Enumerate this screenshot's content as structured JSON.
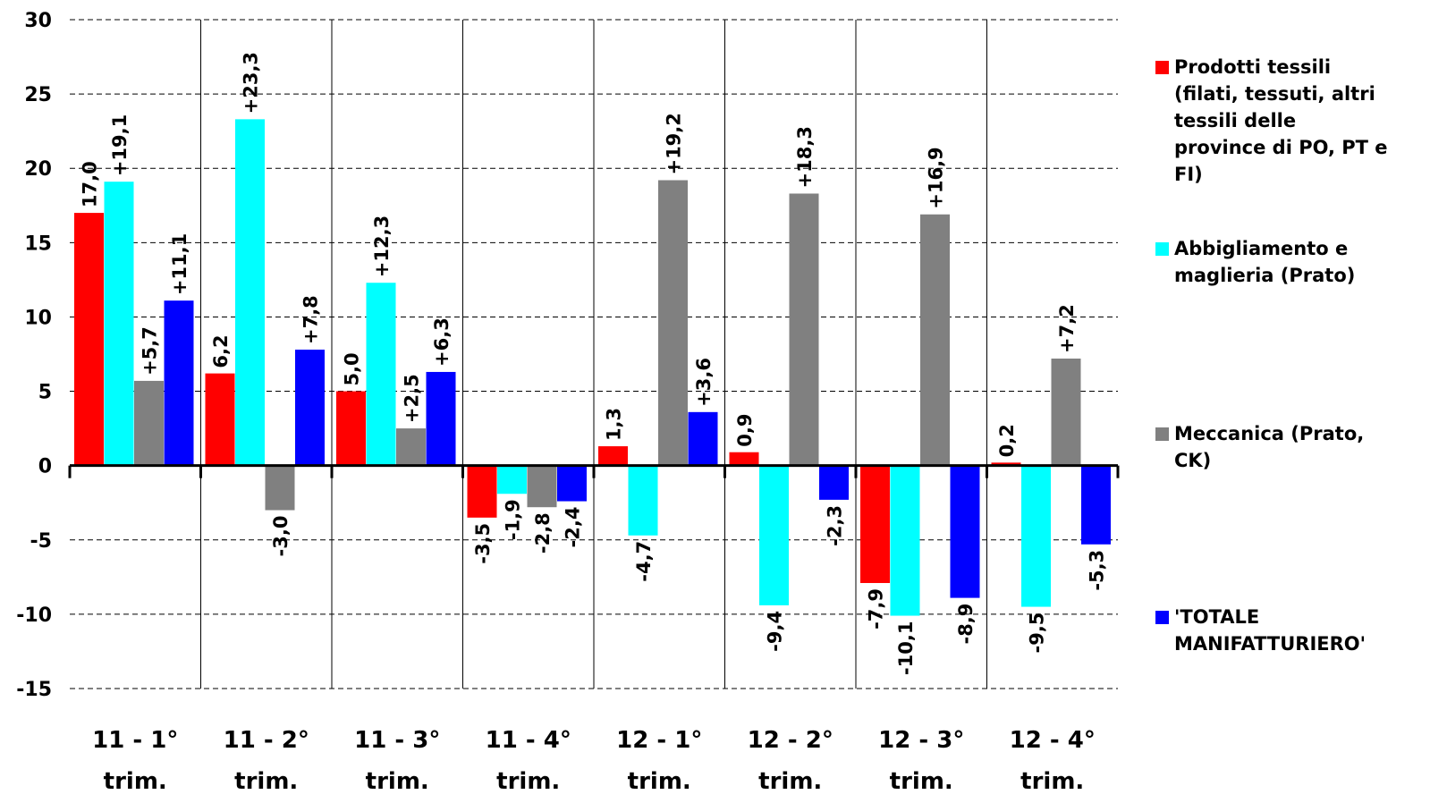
{
  "chart_data": {
    "type": "bar",
    "categories": [
      [
        "11 - 1°",
        "trim."
      ],
      [
        "11 - 2°",
        "trim."
      ],
      [
        "11 - 3°",
        "trim."
      ],
      [
        "11 - 4°",
        "trim."
      ],
      [
        "12 - 1°",
        "trim."
      ],
      [
        "12 - 2°",
        "trim."
      ],
      [
        "12 - 3°",
        "trim."
      ],
      [
        "12 - 4°",
        "trim."
      ]
    ],
    "ylim": [
      -15,
      30
    ],
    "yticks": [
      -15,
      -10,
      -5,
      0,
      5,
      10,
      15,
      20,
      25,
      30
    ],
    "ytick_labels": [
      "-15",
      "-10",
      "-5",
      "0",
      "5",
      "10",
      "15",
      "20",
      "25",
      "30"
    ],
    "grid": "horizontal dashed",
    "legend_position": "right",
    "series": [
      {
        "name": "Prodotti tessili (filati, tessuti, altri tessili delle province di PO, PT e FI)",
        "color": "#ff0000",
        "values": [
          17.0,
          6.2,
          5.0,
          -3.5,
          1.3,
          0.9,
          -7.9,
          0.2
        ],
        "labels": [
          "17,0",
          "6,2",
          "5,0",
          "-3,5",
          "1,3",
          "0,9",
          "-7,9",
          "0,2"
        ]
      },
      {
        "name": "Abbigliamento e maglieria (Prato)",
        "color": "#00ffff",
        "values": [
          19.1,
          23.3,
          12.3,
          -1.9,
          -4.7,
          -9.4,
          -10.1,
          -9.5
        ],
        "labels": [
          "+19,1",
          "+23,3",
          "+12,3",
          "-1,9",
          "-4,7",
          "-9,4",
          "-10,1",
          "-9,5"
        ]
      },
      {
        "name": "Meccanica (Prato, CK)",
        "color": "#808080",
        "values": [
          5.7,
          -3.0,
          2.5,
          -2.8,
          19.2,
          18.3,
          16.9,
          7.2
        ],
        "labels": [
          "+5,7",
          "-3,0",
          "+2,5",
          "-2,8",
          "+19,2",
          "+18,3",
          "+16,9",
          "+7,2"
        ]
      },
      {
        "name": "'TOTALE MANIFATTURIERO'",
        "color": "#0000ff",
        "values": [
          11.1,
          7.8,
          6.3,
          -2.4,
          3.6,
          -2.3,
          -8.9,
          -5.3
        ],
        "labels": [
          "+11,1",
          "+7,8",
          "+6,3",
          "-2,4",
          "+3,6",
          "-2,3",
          "-8,9",
          "-5,3"
        ]
      }
    ]
  },
  "legend": {
    "items": [
      {
        "lines": [
          "Prodotti tessili",
          "(filati, tessuti, altri",
          "tessili delle",
          "province di PO, PT e",
          "FI)"
        ],
        "color": "#ff0000"
      },
      {
        "lines": [
          "Abbigliamento e",
          "maglieria (Prato)"
        ],
        "color": "#00ffff"
      },
      {
        "lines": [
          "Meccanica (Prato,",
          "CK)"
        ],
        "color": "#808080"
      },
      {
        "lines": [
          "'TOTALE",
          "MANIFATTURIERO'"
        ],
        "color": "#0000ff"
      }
    ]
  }
}
